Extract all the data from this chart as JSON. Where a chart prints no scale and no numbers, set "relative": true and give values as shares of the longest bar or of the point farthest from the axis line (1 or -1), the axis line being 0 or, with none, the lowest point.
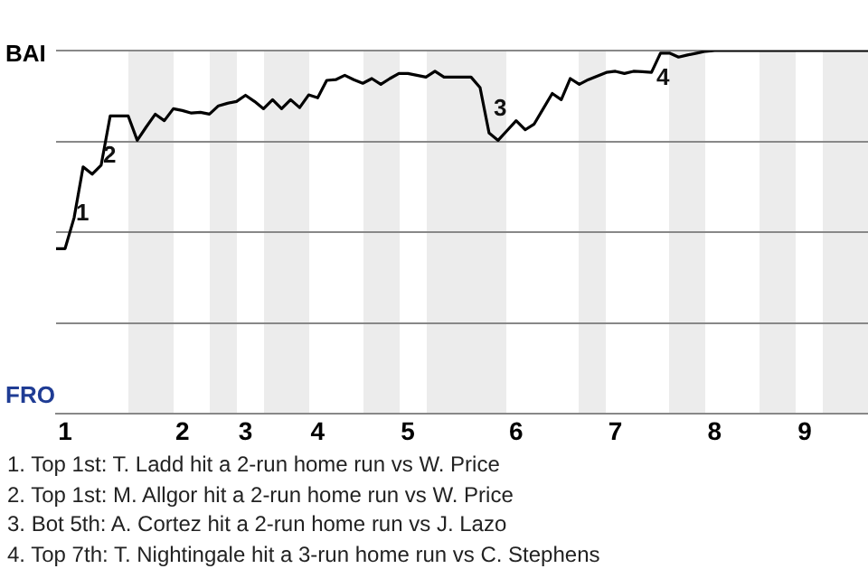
{
  "chart_data": {
    "type": "line",
    "relative": true,
    "categories": [
      null,
      "1",
      null,
      null,
      null,
      null,
      null,
      null,
      null,
      null,
      null,
      null,
      null,
      null,
      "2",
      null,
      null,
      null,
      null,
      null,
      null,
      "3",
      null,
      null,
      null,
      null,
      null,
      null,
      null,
      "4",
      null,
      null,
      null,
      null,
      null,
      null,
      null,
      null,
      null,
      "5",
      null,
      null,
      null,
      null,
      null,
      null,
      null,
      null,
      null,
      null,
      null,
      "6",
      null,
      null,
      null,
      null,
      null,
      null,
      null,
      null,
      null,
      null,
      "7",
      null,
      null,
      null,
      null,
      null,
      null,
      null,
      null,
      null,
      null,
      "8",
      null,
      null,
      null,
      null,
      null,
      null,
      null,
      null,
      null,
      "9",
      null,
      null,
      null,
      null,
      null,
      null,
      null
    ],
    "grid": "y",
    "legend": false,
    "series": [
      {
        "color": "#000000",
        "values": [
          0.455,
          0.455,
          0.54,
          0.68,
          0.66,
          0.685,
          0.82,
          0.82,
          0.82,
          0.753,
          0.79,
          0.825,
          0.807,
          0.84,
          0.835,
          0.828,
          0.83,
          0.825,
          0.848,
          0.855,
          0.86,
          0.877,
          0.86,
          0.84,
          0.865,
          0.84,
          0.865,
          0.843,
          0.878,
          0.87,
          0.918,
          0.92,
          0.932,
          0.92,
          0.91,
          0.923,
          0.907,
          0.923,
          0.937,
          0.937,
          0.932,
          0.927,
          0.943,
          0.927,
          0.927,
          0.927,
          0.927,
          0.898,
          0.773,
          0.753,
          0.78,
          0.807,
          0.782,
          0.798,
          0.84,
          0.882,
          0.865,
          0.923,
          0.907,
          0.92,
          0.93,
          0.94,
          0.943,
          0.937,
          0.943,
          0.942,
          0.94,
          0.993,
          0.993,
          0.982,
          0.988,
          0.993,
          0.998,
          1,
          1,
          1,
          1,
          1,
          1,
          1,
          1,
          1,
          1,
          1,
          1,
          1,
          1,
          1,
          1,
          1,
          1
        ]
      }
    ],
    "annotations": [
      "BAI",
      "FRO",
      "1",
      "2",
      "3",
      "4",
      "1. Top 1st: T. Ladd hit a 2-run home run vs W. Price",
      "2. Top 1st: M. Allgor hit a 2-run home run vs W. Price",
      "3. Bot 5th: A. Cortez hit a 2-run home run vs J. Lazo",
      "4. Top 7th: T. Nightingale hit a 3-run home run vs C. Stephens"
    ]
  }
}
